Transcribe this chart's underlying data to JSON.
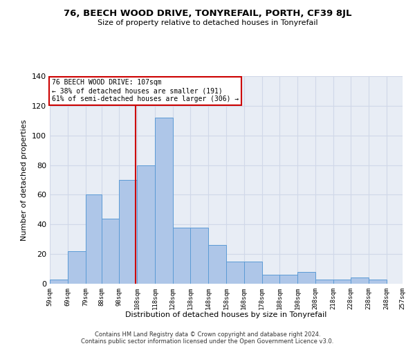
{
  "title": "76, BEECH WOOD DRIVE, TONYREFAIL, PORTH, CF39 8JL",
  "subtitle": "Size of property relative to detached houses in Tonyrefail",
  "xlabel": "Distribution of detached houses by size in Tonyrefail",
  "ylabel": "Number of detached properties",
  "bar_values": [
    3,
    22,
    60,
    44,
    70,
    80,
    112,
    38,
    38,
    26,
    15,
    15,
    6,
    6,
    8,
    3,
    3,
    4,
    3
  ],
  "bin_edges": [
    59,
    69,
    79,
    88,
    98,
    108,
    118,
    128,
    138,
    148,
    158,
    168,
    178,
    188,
    198,
    208,
    218,
    228,
    238,
    248
  ],
  "tick_labels": [
    "59sqm",
    "69sqm",
    "79sqm",
    "88sqm",
    "98sqm",
    "108sqm",
    "118sqm",
    "128sqm",
    "138sqm",
    "148sqm",
    "158sqm",
    "168sqm",
    "178sqm",
    "188sqm",
    "198sqm",
    "208sqm",
    "218sqm",
    "228sqm",
    "238sqm",
    "248sqm",
    "257sqm"
  ],
  "bar_color": "#aec6e8",
  "bar_edge_color": "#5b9bd5",
  "vline_x": 107,
  "vline_color": "#cc0000",
  "annotation_line1": "76 BEECH WOOD DRIVE: 107sqm",
  "annotation_line2": "← 38% of detached houses are smaller (191)",
  "annotation_line3": "61% of semi-detached houses are larger (306) →",
  "annotation_box_color": "#cc0000",
  "annotation_bg": "#ffffff",
  "ylim": [
    0,
    140
  ],
  "yticks": [
    0,
    20,
    40,
    60,
    80,
    100,
    120,
    140
  ],
  "grid_color": "#d0d8e8",
  "bg_color": "#e8edf5",
  "footer_line1": "Contains HM Land Registry data © Crown copyright and database right 2024.",
  "footer_line2": "Contains public sector information licensed under the Open Government Licence v3.0."
}
